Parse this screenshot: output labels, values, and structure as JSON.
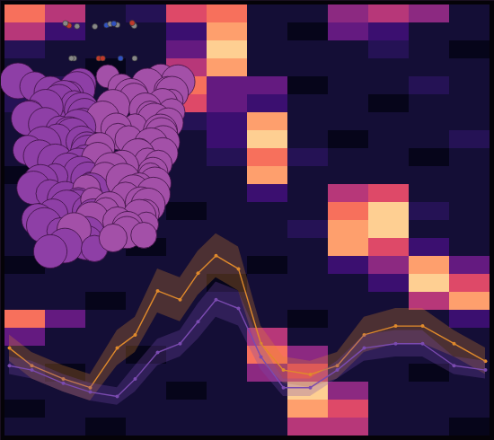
{
  "chart_data": [
    {
      "type": "heatmap",
      "tick_labels": false,
      "zlim": [
        0,
        1
      ],
      "cells": [
        [
          0.7,
          0.5,
          0.1,
          0.15,
          0.6,
          0.7,
          0.1,
          0.1,
          0.4,
          0.5,
          0.4,
          0.1
        ],
        [
          0.5,
          0.2,
          0.1,
          0.1,
          0.2,
          0.8,
          0.1,
          0.05,
          0.3,
          0.2,
          0.1,
          0.1
        ],
        [
          0.15,
          0.1,
          0.1,
          0.1,
          0.3,
          0.9,
          0.1,
          0.1,
          0.1,
          0.15,
          0.1,
          0.05
        ],
        [
          0.1,
          0.1,
          0.05,
          0.1,
          0.5,
          0.8,
          0.1,
          0.1,
          0.1,
          0.1,
          0.1,
          0.1
        ],
        [
          0.1,
          0.15,
          0.1,
          0.1,
          0.7,
          0.3,
          0.3,
          0.05,
          0.1,
          0.1,
          0.15,
          0.1
        ],
        [
          0.15,
          0.1,
          0.1,
          0.1,
          0.6,
          0.3,
          0.2,
          0.1,
          0.1,
          0.05,
          0.1,
          0.1
        ],
        [
          0.1,
          0.1,
          0.05,
          0.1,
          0.15,
          0.2,
          0.8,
          0.1,
          0.1,
          0.1,
          0.1,
          0.1
        ],
        [
          0.1,
          0.05,
          0.1,
          0.1,
          0.1,
          0.2,
          0.9,
          0.1,
          0.05,
          0.1,
          0.1,
          0.15
        ],
        [
          0.1,
          0.1,
          0.1,
          0.05,
          0.1,
          0.15,
          0.7,
          0.15,
          0.1,
          0.1,
          0.05,
          0.1
        ],
        [
          0.05,
          0.1,
          0.1,
          0.1,
          0.1,
          0.1,
          0.8,
          0.1,
          0.1,
          0.1,
          0.1,
          0.1
        ],
        [
          0.1,
          0.1,
          0.05,
          0.1,
          0.1,
          0.1,
          0.2,
          0.1,
          0.5,
          0.6,
          0.1,
          0.1
        ],
        [
          0.1,
          0.1,
          0.1,
          0.1,
          0.05,
          0.1,
          0.1,
          0.1,
          0.7,
          0.9,
          0.15,
          0.1
        ],
        [
          0.1,
          0.05,
          0.1,
          0.1,
          0.1,
          0.1,
          0.1,
          0.15,
          0.8,
          0.9,
          0.1,
          0.1
        ],
        [
          0.1,
          0.1,
          0.1,
          0.05,
          0.1,
          0.1,
          0.1,
          0.1,
          0.8,
          0.6,
          0.2,
          0.1
        ],
        [
          0.05,
          0.1,
          0.1,
          0.1,
          0.1,
          0.1,
          0.05,
          0.1,
          0.2,
          0.4,
          0.8,
          0.3
        ],
        [
          0.1,
          0.1,
          0.1,
          0.1,
          0.1,
          0.05,
          0.1,
          0.1,
          0.1,
          0.2,
          0.9,
          0.6
        ],
        [
          0.1,
          0.1,
          0.05,
          0.1,
          0.1,
          0.1,
          0.1,
          0.1,
          0.1,
          0.1,
          0.5,
          0.8
        ],
        [
          0.7,
          0.3,
          0.1,
          0.1,
          0.1,
          0.1,
          0.1,
          0.05,
          0.1,
          0.1,
          0.1,
          0.2
        ],
        [
          0.3,
          0.1,
          0.1,
          0.1,
          0.1,
          0.1,
          0.5,
          0.1,
          0.1,
          0.1,
          0.1,
          0.1
        ],
        [
          0.1,
          0.1,
          0.1,
          0.05,
          0.1,
          0.1,
          0.7,
          0.4,
          0.1,
          0.1,
          0.1,
          0.1
        ],
        [
          0.1,
          0.05,
          0.1,
          0.1,
          0.1,
          0.1,
          0.4,
          0.6,
          0.1,
          0.1,
          0.05,
          0.1
        ],
        [
          0.1,
          0.1,
          0.1,
          0.1,
          0.05,
          0.1,
          0.1,
          0.9,
          0.4,
          0.1,
          0.1,
          0.1
        ],
        [
          0.05,
          0.1,
          0.1,
          0.1,
          0.1,
          0.1,
          0.1,
          0.8,
          0.6,
          0.1,
          0.1,
          0.1
        ],
        [
          0.1,
          0.1,
          0.05,
          0.1,
          0.1,
          0.1,
          0.1,
          0.5,
          0.5,
          0.1,
          0.1,
          0.05
        ]
      ]
    },
    {
      "type": "line",
      "tick_labels": false,
      "xlim": [
        0,
        22
      ],
      "ylim": [
        0,
        10
      ],
      "x": [
        0.4,
        1.4,
        2.8,
        4,
        5.2,
        6,
        7,
        8,
        8.8,
        9.6,
        10.6,
        11.6,
        12.6,
        13.8,
        15,
        16.2,
        17.6,
        18.8,
        20.2,
        21.6
      ],
      "series": [
        {
          "color": "#e08a2c",
          "marker": "circle",
          "values": [
            2.1,
            1.7,
            1.4,
            1.2,
            2.1,
            2.4,
            3.4,
            3.2,
            3.8,
            4.2,
            3.9,
            2.2,
            1.6,
            1.5,
            1.7,
            2.4,
            2.6,
            2.6,
            2.2,
            1.8
          ],
          "error": [
            0.3,
            0.3,
            0.3,
            0.3,
            0.4,
            0.4,
            0.5,
            0.5,
            0.5,
            0.5,
            0.5,
            0.4,
            0.3,
            0.3,
            0.3,
            0.4,
            0.4,
            0.4,
            0.3,
            0.3
          ]
        },
        {
          "color": "#7b4bb0",
          "marker": "circle",
          "values": [
            1.7,
            1.6,
            1.3,
            1.1,
            1.0,
            1.4,
            2.0,
            2.2,
            2.7,
            3.2,
            3.0,
            1.9,
            1.2,
            1.2,
            1.6,
            2.1,
            2.2,
            2.2,
            1.7,
            1.6
          ],
          "error": [
            0.2,
            0.2,
            0.2,
            0.2,
            0.2,
            0.3,
            0.3,
            0.3,
            0.4,
            0.4,
            0.4,
            0.3,
            0.2,
            0.2,
            0.2,
            0.3,
            0.3,
            0.3,
            0.2,
            0.2
          ]
        }
      ]
    }
  ]
}
